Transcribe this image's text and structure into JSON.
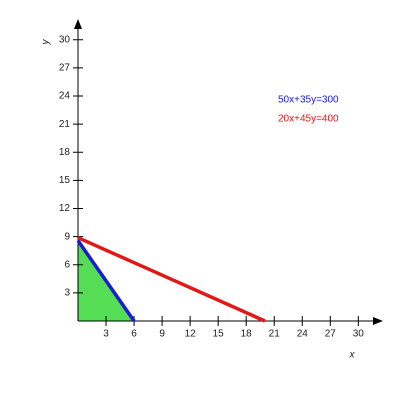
{
  "chart_data": {
    "type": "line",
    "x_label": "x",
    "y_label": "y",
    "xlim": [
      0,
      32
    ],
    "ylim": [
      0,
      32
    ],
    "xticks": [
      3,
      6,
      9,
      12,
      15,
      18,
      21,
      24,
      27,
      30
    ],
    "yticks": [
      3,
      6,
      9,
      12,
      15,
      18,
      21,
      24,
      27,
      30
    ],
    "series": [
      {
        "name": "50x+35y=300",
        "color": "#1a1adb",
        "fill": "#55dd55",
        "x": [
          0,
          6
        ],
        "values": [
          8.571,
          0
        ]
      },
      {
        "name": "20x+45y=400",
        "color": "#e01818",
        "x": [
          0,
          20
        ],
        "values": [
          8.889,
          0
        ]
      }
    ]
  }
}
